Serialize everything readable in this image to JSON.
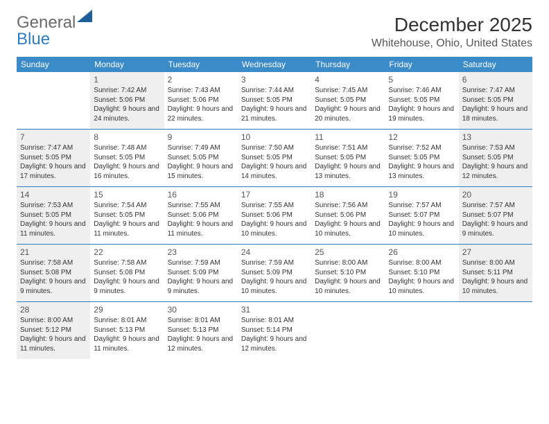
{
  "logo": {
    "text_general": "General",
    "text_blue": "Blue"
  },
  "title": "December 2025",
  "location": "Whitehouse, Ohio, United States",
  "colors": {
    "header_bg": "#3b8bc9",
    "divider": "#2f7bbf",
    "shaded_bg": "#efefef",
    "page_bg": "#ffffff",
    "text": "#333333"
  },
  "weekdays": [
    "Sunday",
    "Monday",
    "Tuesday",
    "Wednesday",
    "Thursday",
    "Friday",
    "Saturday"
  ],
  "weeks": [
    [
      {
        "num": "",
        "shaded": false,
        "sunrise": "",
        "sunset": "",
        "daylight": ""
      },
      {
        "num": "1",
        "shaded": true,
        "sunrise": "Sunrise: 7:42 AM",
        "sunset": "Sunset: 5:06 PM",
        "daylight": "Daylight: 9 hours and 24 minutes."
      },
      {
        "num": "2",
        "shaded": false,
        "sunrise": "Sunrise: 7:43 AM",
        "sunset": "Sunset: 5:06 PM",
        "daylight": "Daylight: 9 hours and 22 minutes."
      },
      {
        "num": "3",
        "shaded": false,
        "sunrise": "Sunrise: 7:44 AM",
        "sunset": "Sunset: 5:05 PM",
        "daylight": "Daylight: 9 hours and 21 minutes."
      },
      {
        "num": "4",
        "shaded": false,
        "sunrise": "Sunrise: 7:45 AM",
        "sunset": "Sunset: 5:05 PM",
        "daylight": "Daylight: 9 hours and 20 minutes."
      },
      {
        "num": "5",
        "shaded": false,
        "sunrise": "Sunrise: 7:46 AM",
        "sunset": "Sunset: 5:05 PM",
        "daylight": "Daylight: 9 hours and 19 minutes."
      },
      {
        "num": "6",
        "shaded": true,
        "sunrise": "Sunrise: 7:47 AM",
        "sunset": "Sunset: 5:05 PM",
        "daylight": "Daylight: 9 hours and 18 minutes."
      }
    ],
    [
      {
        "num": "7",
        "shaded": true,
        "sunrise": "Sunrise: 7:47 AM",
        "sunset": "Sunset: 5:05 PM",
        "daylight": "Daylight: 9 hours and 17 minutes."
      },
      {
        "num": "8",
        "shaded": false,
        "sunrise": "Sunrise: 7:48 AM",
        "sunset": "Sunset: 5:05 PM",
        "daylight": "Daylight: 9 hours and 16 minutes."
      },
      {
        "num": "9",
        "shaded": false,
        "sunrise": "Sunrise: 7:49 AM",
        "sunset": "Sunset: 5:05 PM",
        "daylight": "Daylight: 9 hours and 15 minutes."
      },
      {
        "num": "10",
        "shaded": false,
        "sunrise": "Sunrise: 7:50 AM",
        "sunset": "Sunset: 5:05 PM",
        "daylight": "Daylight: 9 hours and 14 minutes."
      },
      {
        "num": "11",
        "shaded": false,
        "sunrise": "Sunrise: 7:51 AM",
        "sunset": "Sunset: 5:05 PM",
        "daylight": "Daylight: 9 hours and 13 minutes."
      },
      {
        "num": "12",
        "shaded": false,
        "sunrise": "Sunrise: 7:52 AM",
        "sunset": "Sunset: 5:05 PM",
        "daylight": "Daylight: 9 hours and 13 minutes."
      },
      {
        "num": "13",
        "shaded": true,
        "sunrise": "Sunrise: 7:53 AM",
        "sunset": "Sunset: 5:05 PM",
        "daylight": "Daylight: 9 hours and 12 minutes."
      }
    ],
    [
      {
        "num": "14",
        "shaded": true,
        "sunrise": "Sunrise: 7:53 AM",
        "sunset": "Sunset: 5:05 PM",
        "daylight": "Daylight: 9 hours and 11 minutes."
      },
      {
        "num": "15",
        "shaded": false,
        "sunrise": "Sunrise: 7:54 AM",
        "sunset": "Sunset: 5:05 PM",
        "daylight": "Daylight: 9 hours and 11 minutes."
      },
      {
        "num": "16",
        "shaded": false,
        "sunrise": "Sunrise: 7:55 AM",
        "sunset": "Sunset: 5:06 PM",
        "daylight": "Daylight: 9 hours and 11 minutes."
      },
      {
        "num": "17",
        "shaded": false,
        "sunrise": "Sunrise: 7:55 AM",
        "sunset": "Sunset: 5:06 PM",
        "daylight": "Daylight: 9 hours and 10 minutes."
      },
      {
        "num": "18",
        "shaded": false,
        "sunrise": "Sunrise: 7:56 AM",
        "sunset": "Sunset: 5:06 PM",
        "daylight": "Daylight: 9 hours and 10 minutes."
      },
      {
        "num": "19",
        "shaded": false,
        "sunrise": "Sunrise: 7:57 AM",
        "sunset": "Sunset: 5:07 PM",
        "daylight": "Daylight: 9 hours and 10 minutes."
      },
      {
        "num": "20",
        "shaded": true,
        "sunrise": "Sunrise: 7:57 AM",
        "sunset": "Sunset: 5:07 PM",
        "daylight": "Daylight: 9 hours and 9 minutes."
      }
    ],
    [
      {
        "num": "21",
        "shaded": true,
        "sunrise": "Sunrise: 7:58 AM",
        "sunset": "Sunset: 5:08 PM",
        "daylight": "Daylight: 9 hours and 9 minutes."
      },
      {
        "num": "22",
        "shaded": false,
        "sunrise": "Sunrise: 7:58 AM",
        "sunset": "Sunset: 5:08 PM",
        "daylight": "Daylight: 9 hours and 9 minutes."
      },
      {
        "num": "23",
        "shaded": false,
        "sunrise": "Sunrise: 7:59 AM",
        "sunset": "Sunset: 5:09 PM",
        "daylight": "Daylight: 9 hours and 9 minutes."
      },
      {
        "num": "24",
        "shaded": false,
        "sunrise": "Sunrise: 7:59 AM",
        "sunset": "Sunset: 5:09 PM",
        "daylight": "Daylight: 9 hours and 10 minutes."
      },
      {
        "num": "25",
        "shaded": false,
        "sunrise": "Sunrise: 8:00 AM",
        "sunset": "Sunset: 5:10 PM",
        "daylight": "Daylight: 9 hours and 10 minutes."
      },
      {
        "num": "26",
        "shaded": false,
        "sunrise": "Sunrise: 8:00 AM",
        "sunset": "Sunset: 5:10 PM",
        "daylight": "Daylight: 9 hours and 10 minutes."
      },
      {
        "num": "27",
        "shaded": true,
        "sunrise": "Sunrise: 8:00 AM",
        "sunset": "Sunset: 5:11 PM",
        "daylight": "Daylight: 9 hours and 10 minutes."
      }
    ],
    [
      {
        "num": "28",
        "shaded": true,
        "sunrise": "Sunrise: 8:00 AM",
        "sunset": "Sunset: 5:12 PM",
        "daylight": "Daylight: 9 hours and 11 minutes."
      },
      {
        "num": "29",
        "shaded": false,
        "sunrise": "Sunrise: 8:01 AM",
        "sunset": "Sunset: 5:13 PM",
        "daylight": "Daylight: 9 hours and 11 minutes."
      },
      {
        "num": "30",
        "shaded": false,
        "sunrise": "Sunrise: 8:01 AM",
        "sunset": "Sunset: 5:13 PM",
        "daylight": "Daylight: 9 hours and 12 minutes."
      },
      {
        "num": "31",
        "shaded": false,
        "sunrise": "Sunrise: 8:01 AM",
        "sunset": "Sunset: 5:14 PM",
        "daylight": "Daylight: 9 hours and 12 minutes."
      },
      {
        "num": "",
        "shaded": false,
        "sunrise": "",
        "sunset": "",
        "daylight": ""
      },
      {
        "num": "",
        "shaded": false,
        "sunrise": "",
        "sunset": "",
        "daylight": ""
      },
      {
        "num": "",
        "shaded": false,
        "sunrise": "",
        "sunset": "",
        "daylight": ""
      }
    ]
  ]
}
